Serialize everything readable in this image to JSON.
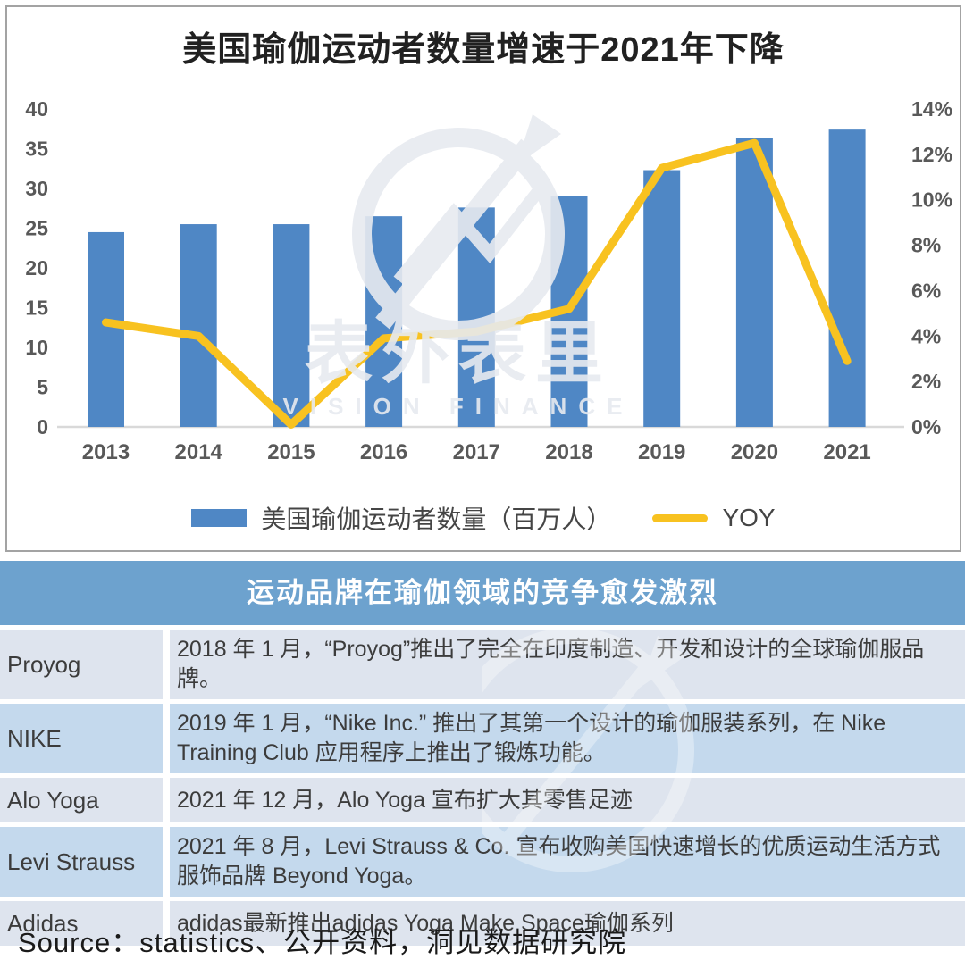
{
  "page": {
    "title": "美国瑜伽运动者数量增速于2021年下降",
    "source_note": "Source：statistics、公开资料，洞见数据研究院"
  },
  "chart_data": {
    "type": "bar",
    "title": "美国瑜伽运动者数量增速于2021年下降",
    "categories": [
      "2013",
      "2014",
      "2015",
      "2016",
      "2017",
      "2018",
      "2019",
      "2020",
      "2021"
    ],
    "series": [
      {
        "name": "美国瑜伽运动者数量（百万人）",
        "type": "bar",
        "axis": "left",
        "values": [
          24.5,
          25.5,
          25.5,
          26.5,
          27.6,
          29.0,
          32.3,
          36.3,
          37.4
        ]
      },
      {
        "name": "YOY",
        "type": "line",
        "axis": "right",
        "unit": "percent",
        "values": [
          4.6,
          4.0,
          0.1,
          3.9,
          4.2,
          5.2,
          11.4,
          12.5,
          2.9
        ]
      }
    ],
    "left_axis": {
      "min": 0,
      "max": 40,
      "step": 5
    },
    "right_axis": {
      "min": 0,
      "max": 14,
      "step": 2,
      "format": "percent"
    },
    "grid": false,
    "legend_position": "bottom"
  },
  "table": {
    "title": "运动品牌在瑜伽领域的竞争愈发激烈",
    "rows": [
      {
        "brand": "Proyog",
        "description": "2018 年 1 月，“Proyog”推出了完全在印度制造、开发和设计的全球瑜伽服品牌。"
      },
      {
        "brand": "NIKE",
        "description": "2019 年 1 月，“Nike Inc.” 推出了其第一个设计的瑜伽服装系列，在 Nike Training Club 应用程序上推出了锻炼功能。"
      },
      {
        "brand": "Alo Yoga",
        "description": "2021 年 12 月，Alo Yoga 宣布扩大其零售足迹"
      },
      {
        "brand": "Levi Strauss",
        "description": "2021 年 8 月，Levi Strauss & Co. 宣布收购美国快速增长的优质运动生活方式服饰品牌 Beyond Yoga。"
      },
      {
        "brand": "Adidas",
        "description": "adidas最新推出adidas Yoga Make Space瑜伽系列"
      }
    ]
  },
  "watermark": {
    "line1": "表外表里",
    "line2": "VISION FINANCE"
  },
  "colors": {
    "bar": "#4F87C5",
    "line": "#F8C220",
    "axis_line": "#D9D9D9",
    "axis_label": "#595959",
    "table_header_bg": "#6DA2CE",
    "row_light": "#DEE4EE",
    "row_medium": "#C4D9ED",
    "card_border": "#A3A3A3",
    "watermark": "#E7EAF0"
  }
}
